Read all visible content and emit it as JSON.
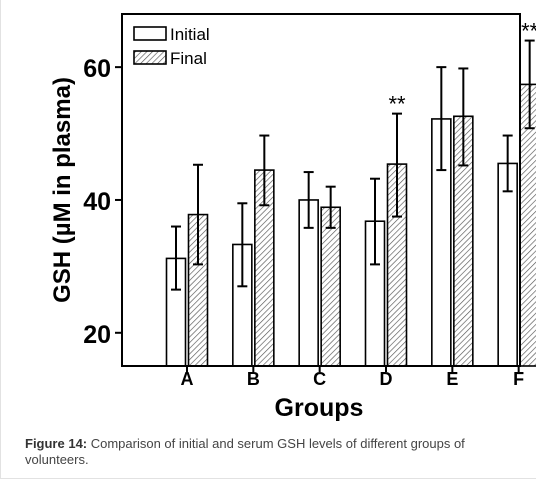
{
  "chart_data": {
    "type": "bar",
    "categories": [
      "A",
      "B",
      "C",
      "D",
      "E",
      "F"
    ],
    "xlabel": "Groups",
    "ylabel": "GSH (µM in plasma)",
    "ylim": [
      15,
      68
    ],
    "yticks": [
      "20",
      "40",
      "60"
    ],
    "ytick_values": [
      20,
      40,
      60
    ],
    "legend_position": "top-left",
    "series": [
      {
        "name": "Initial",
        "pattern": "open",
        "values": [
          31.2,
          33.3,
          40.0,
          36.8,
          52.2,
          45.5
        ],
        "err_low": [
          26.5,
          27.0,
          35.8,
          30.3,
          44.5,
          41.3
        ],
        "err_high": [
          36.0,
          39.5,
          44.2,
          43.2,
          60.0,
          49.7
        ]
      },
      {
        "name": "Final",
        "pattern": "hatched",
        "values": [
          37.8,
          44.5,
          38.9,
          45.4,
          52.6,
          57.4
        ],
        "err_low": [
          30.3,
          39.2,
          35.8,
          37.5,
          45.2,
          50.8
        ],
        "err_high": [
          45.3,
          49.7,
          42.0,
          53.0,
          59.8,
          64.0
        ]
      }
    ],
    "annotations": [
      {
        "category": "D",
        "series": "Final",
        "text": "**"
      },
      {
        "category": "F",
        "series": "Final",
        "text": "**"
      }
    ]
  },
  "caption": {
    "label": "Figure 14:",
    "text": " Comparison of initial and serum GSH levels of different groups of volunteers."
  },
  "colors": {
    "ink": "#000000",
    "hatch": "#555555",
    "bar_fill": "#ffffff"
  }
}
